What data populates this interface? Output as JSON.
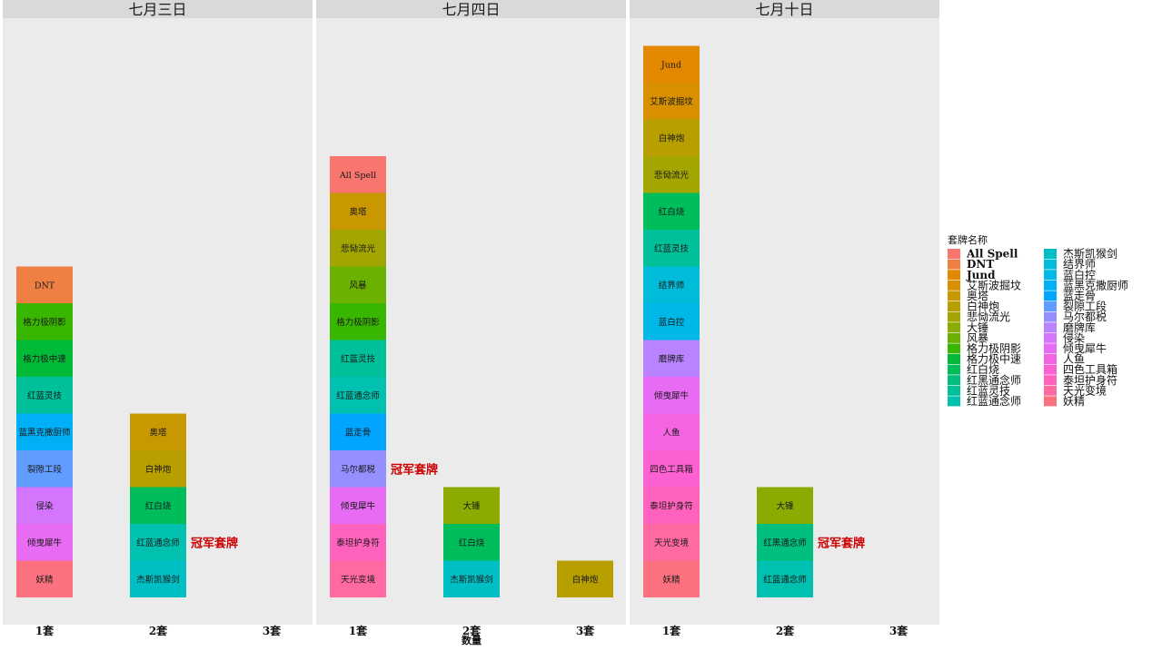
{
  "chart_data": {
    "type": "bar",
    "stacked": true,
    "xlabel": "数量",
    "categories": [
      "1套",
      "2套",
      "3套"
    ],
    "facets": [
      {
        "title": "七月三日",
        "champion_annotation": "冠军套牌",
        "champion_category": "2套",
        "bars": [
          {
            "category": "1套",
            "segments": [
              "妖精",
              "倾曳犀牛",
              "侵染",
              "裂隙工段",
              "蓝黑克撒厨师",
              "红蓝灵技",
              "格力极中速",
              "格力极阴影",
              "DNT"
            ]
          },
          {
            "category": "2套",
            "segments": [
              "杰斯凯猴剑",
              "红蓝通念师",
              "红白烧",
              "白神炮",
              "奥塔"
            ]
          },
          {
            "category": "3套",
            "segments": []
          }
        ]
      },
      {
        "title": "七月四日",
        "champion_annotation": "冠军套牌",
        "champion_category": "1套",
        "bars": [
          {
            "category": "1套",
            "segments": [
              "天光变境",
              "泰坦护身符",
              "倾曳犀牛",
              "马尔都税",
              "蓝走骨",
              "红蓝通念师",
              "红蓝灵技",
              "格力极阴影",
              "风暴",
              "悲恸流光",
              "奥塔",
              "All Spell"
            ]
          },
          {
            "category": "2套",
            "segments": [
              "杰斯凯猴剑",
              "红白烧",
              "大锤"
            ]
          },
          {
            "category": "3套",
            "segments": [
              "白神炮"
            ]
          }
        ]
      },
      {
        "title": "七月十日",
        "champion_annotation": "冠军套牌",
        "champion_category": "2套",
        "bars": [
          {
            "category": "1套",
            "segments": [
              "妖精",
              "天光变境",
              "泰坦护身符",
              "四色工具箱",
              "人鱼",
              "倾曳犀牛",
              "磨牌库",
              "蓝白控",
              "结界师",
              "红蓝灵技",
              "红白烧",
              "悲恸流光",
              "白神炮",
              "艾斯波掘坟",
              "Jund"
            ]
          },
          {
            "category": "2套",
            "segments": [
              "红蓝通念师",
              "红黑通念师",
              "大锤"
            ]
          },
          {
            "category": "3套",
            "segments": []
          }
        ]
      }
    ],
    "legend": {
      "title": "套牌名称",
      "position": "right",
      "entries": [
        {
          "name": "All Spell",
          "color": "#F8766D",
          "bold": true
        },
        {
          "name": "DNT",
          "color": "#EE8043",
          "bold": true
        },
        {
          "name": "Jund",
          "color": "#E48800",
          "bold": true
        },
        {
          "name": "艾斯波掘坟",
          "color": "#D89000"
        },
        {
          "name": "奥塔",
          "color": "#C99800"
        },
        {
          "name": "白神炮",
          "color": "#B79F00"
        },
        {
          "name": "悲恸流光",
          "color": "#A3A500"
        },
        {
          "name": "大锤",
          "color": "#8BAB00"
        },
        {
          "name": "风暴",
          "color": "#6BB100"
        },
        {
          "name": "格力极阴影",
          "color": "#39B600"
        },
        {
          "name": "格力极中速",
          "color": "#00BA38"
        },
        {
          "name": "红白烧",
          "color": "#00BD5C"
        },
        {
          "name": "红黑通念师",
          "color": "#00BF7D"
        },
        {
          "name": "红蓝灵技",
          "color": "#00C09A"
        },
        {
          "name": "红蓝通念师",
          "color": "#00C0AF"
        },
        {
          "name": "杰斯凯猴剑",
          "color": "#00BFC4"
        },
        {
          "name": "结界师",
          "color": "#00BCD8"
        },
        {
          "name": "蓝白控",
          "color": "#00B8E7"
        },
        {
          "name": "蓝黑克撒厨师",
          "color": "#00B0F6"
        },
        {
          "name": "蓝走骨",
          "color": "#00A5FF"
        },
        {
          "name": "裂隙工段",
          "color": "#619CFF"
        },
        {
          "name": "马尔都税",
          "color": "#9590FF"
        },
        {
          "name": "磨牌库",
          "color": "#B983FF"
        },
        {
          "name": "侵染",
          "color": "#D575FE"
        },
        {
          "name": "倾曳犀牛",
          "color": "#E76BF3"
        },
        {
          "name": "人鱼",
          "color": "#F564E3"
        },
        {
          "name": "四色工具箱",
          "color": "#FD61D1"
        },
        {
          "name": "泰坦护身符",
          "color": "#FF62BC"
        },
        {
          "name": "天光变境",
          "color": "#FF6AA2"
        },
        {
          "name": "妖精",
          "color": "#FC717F"
        }
      ]
    },
    "grid": false,
    "panel_background": "#EBEBEB",
    "strip_background": "#D9D9D9"
  }
}
